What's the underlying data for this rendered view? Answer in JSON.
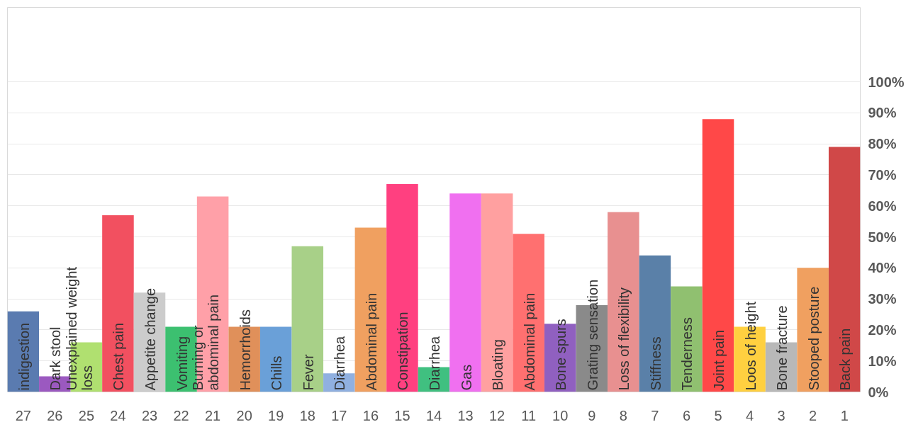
{
  "chart_data": {
    "type": "bar",
    "categories": [
      "27",
      "26",
      "25",
      "24",
      "23",
      "22",
      "21",
      "20",
      "19",
      "18",
      "17",
      "16",
      "15",
      "14",
      "13",
      "12",
      "11",
      "10",
      "9",
      "8",
      "7",
      "6",
      "5",
      "4",
      "3",
      "2",
      "1"
    ],
    "values": [
      26,
      5,
      16,
      57,
      32,
      21,
      63,
      21,
      21,
      47,
      6,
      53,
      67,
      8,
      64,
      64,
      51,
      22,
      28,
      58,
      44,
      34,
      88,
      21,
      16,
      40,
      79
    ],
    "colors": [
      "#5a7bb0",
      "#9b59c0",
      "#b0e070",
      "#f25060",
      "#cccccc",
      "#3cc070",
      "#ffa0a8",
      "#e0905a",
      "#6aa0d8",
      "#a8d088",
      "#90b0e0",
      "#f0a060",
      "#ff4080",
      "#40c080",
      "#f070f0",
      "#ffa0a0",
      "#ff7070",
      "#9060c0",
      "#8a8a8a",
      "#e89090",
      "#5a80a8",
      "#90c070",
      "#ff4848",
      "#ffd040",
      "#b8b8b8",
      "#f0a060",
      "#d04848"
    ],
    "ylim": [
      0,
      124
    ],
    "yticks": [
      {
        "value": 0,
        "label": "0%"
      },
      {
        "value": 10,
        "label": "10%"
      },
      {
        "value": 20,
        "label": "20%"
      },
      {
        "value": 30,
        "label": "30%"
      },
      {
        "value": 40,
        "label": "40%"
      },
      {
        "value": 50,
        "label": "50%"
      },
      {
        "value": 60,
        "label": "60%"
      },
      {
        "value": 70,
        "label": "70%"
      },
      {
        "value": 80,
        "label": "80%"
      },
      {
        "value": 90,
        "label": "90%"
      },
      {
        "value": 100,
        "label": "100%"
      }
    ],
    "grid": "y",
    "annotations": [
      {
        "text": "indigestion",
        "x": "27",
        "y": 0
      },
      {
        "text": "Dark stool",
        "x": "26",
        "y": 0
      },
      {
        "text": "Unexplained weight loss",
        "x": "25",
        "y": 0
      },
      {
        "text": "Chest pain",
        "x": "24",
        "y": 0
      },
      {
        "text": "Appetite change",
        "x": "23",
        "y": 0
      },
      {
        "text": "Vomiting",
        "x": "22",
        "y": 0
      },
      {
        "text": "Burning or abdominal pain",
        "x": "21",
        "y": 0
      },
      {
        "text": "Hemorrhoids",
        "x": "20",
        "y": 0
      },
      {
        "text": "Chills",
        "x": "19",
        "y": 0
      },
      {
        "text": "Fever",
        "x": "18",
        "y": 0
      },
      {
        "text": "Diarrhea",
        "x": "17",
        "y": 0
      },
      {
        "text": "Abdominal pain",
        "x": "16",
        "y": 0
      },
      {
        "text": "Constipation",
        "x": "15",
        "y": 0
      },
      {
        "text": "Diarrhea",
        "x": "14",
        "y": 0
      },
      {
        "text": "Gas",
        "x": "13",
        "y": 0
      },
      {
        "text": "Bloating",
        "x": "12",
        "y": 0
      },
      {
        "text": "Abdominal pain",
        "x": "11",
        "y": 0
      },
      {
        "text": "Bone spurs",
        "x": "10",
        "y": 0
      },
      {
        "text": "Grating sensation",
        "x": "9",
        "y": 0
      },
      {
        "text": "Loss of flexibility",
        "x": "8",
        "y": 0
      },
      {
        "text": "Stiffness",
        "x": "7",
        "y": 0
      },
      {
        "text": "Tenderness",
        "x": "6",
        "y": 0
      },
      {
        "text": "Joint pain",
        "x": "5",
        "y": 0
      },
      {
        "text": "Loos of height",
        "x": "4",
        "y": 0
      },
      {
        "text": "Bone fracture",
        "x": "3",
        "y": 0
      },
      {
        "text": "Stooped posture",
        "x": "2",
        "y": 0
      },
      {
        "text": "Back pain",
        "x": "1",
        "y": 0
      }
    ]
  }
}
